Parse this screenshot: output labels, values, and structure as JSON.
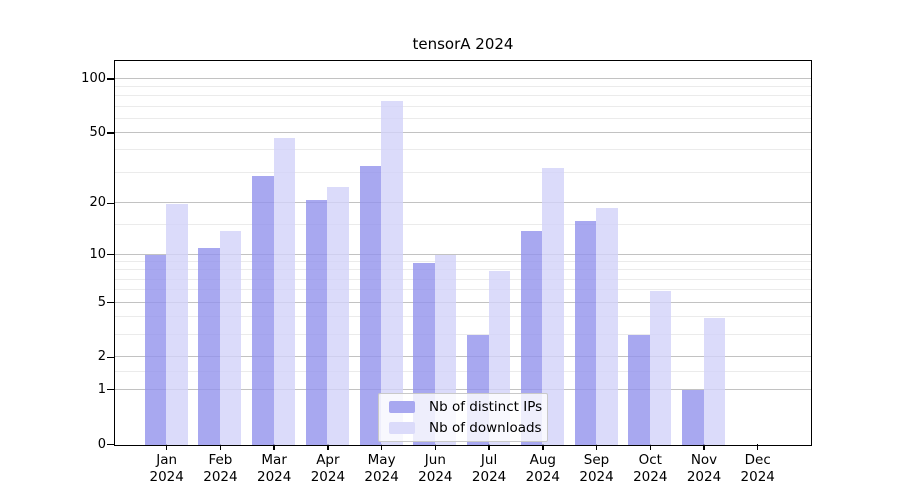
{
  "title": "tensorA 2024",
  "legend": {
    "position": "lower center",
    "items": [
      {
        "label": "Nb of distinct IPs",
        "swatch_color": "#a8a8f0"
      },
      {
        "label": "Nb of downloads",
        "swatch_color": "#dbdbfa"
      }
    ]
  },
  "x_axis": {
    "months": [
      "Jan",
      "Feb",
      "Mar",
      "Apr",
      "May",
      "Jun",
      "Jul",
      "Aug",
      "Sep",
      "Oct",
      "Nov",
      "Dec"
    ],
    "year": "2024"
  },
  "y_axis": {
    "major_ticks": [
      {
        "value": 0,
        "label": "0"
      },
      {
        "value": 1,
        "label": "1"
      },
      {
        "value": 2,
        "label": "2"
      },
      {
        "value": 5,
        "label": "5"
      },
      {
        "value": 10,
        "label": "10"
      },
      {
        "value": 20,
        "label": "20"
      },
      {
        "value": 50,
        "label": "50"
      },
      {
        "value": 100,
        "label": "100"
      }
    ],
    "minor_ticks": [
      1.5,
      3,
      4,
      6,
      7,
      8,
      9,
      15,
      30,
      40,
      60,
      70,
      80,
      90
    ]
  },
  "chart_data": {
    "type": "bar",
    "title": "tensorA 2024",
    "categories": [
      "Jan 2024",
      "Feb 2024",
      "Mar 2024",
      "Apr 2024",
      "May 2024",
      "Jun 2024",
      "Jul 2024",
      "Aug 2024",
      "Sep 2024",
      "Oct 2024",
      "Nov 2024",
      "Dec 2024"
    ],
    "series": [
      {
        "name": "Nb of distinct IPs",
        "fill": "rgba(146,146,236,0.8)",
        "legend_color": "#a8a8f0",
        "values": [
          10,
          11,
          29,
          21,
          33,
          9,
          3,
          14,
          16,
          3,
          1,
          0
        ]
      },
      {
        "name": "Nb of downloads",
        "fill": "rgba(210,210,249,0.8)",
        "legend_color": "#dbdbfa",
        "values": [
          20,
          14,
          47,
          25,
          76,
          10,
          8,
          32,
          19,
          6,
          4,
          0
        ]
      }
    ],
    "xlabel": "",
    "ylabel": "",
    "y_scale": "log1p",
    "ylim": [
      0,
      125
    ],
    "y_ticks": [
      0,
      1,
      2,
      5,
      10,
      20,
      50,
      100
    ],
    "grid": "horizontal",
    "legend_position": "lower center"
  },
  "colors": {
    "grid_major": "#c2c2c2",
    "grid_minor": "#ebebeb",
    "axis": "#000000",
    "background": "#ffffff"
  }
}
